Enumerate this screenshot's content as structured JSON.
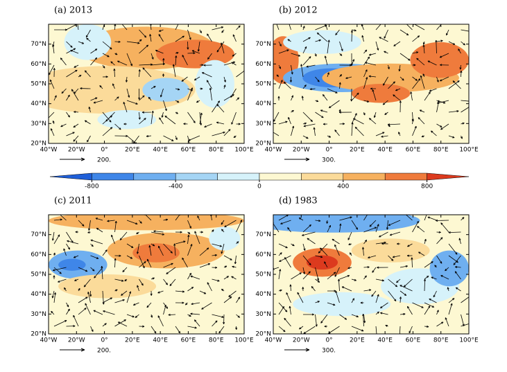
{
  "panels": [
    {
      "title": "(a) 2013",
      "reference_vector": "200."
    },
    {
      "title": "(b) 2012",
      "reference_vector": "300."
    },
    {
      "title": "(c) 2011",
      "reference_vector": "200."
    },
    {
      "title": "(d) 1983",
      "reference_vector": "300."
    }
  ],
  "lat_lim": [
    20,
    80
  ],
  "lat_ticks": [
    {
      "value": 20,
      "label": "20°N"
    },
    {
      "value": 30,
      "label": "30°N"
    },
    {
      "value": 40,
      "label": "40°N"
    },
    {
      "value": 50,
      "label": "50°N"
    },
    {
      "value": 60,
      "label": "60°N"
    },
    {
      "value": 70,
      "label": "70°N"
    }
  ],
  "lon_lim": [
    -40,
    100
  ],
  "lon_ticks": [
    {
      "value": -40,
      "label": "40°W"
    },
    {
      "value": -20,
      "label": "20°W"
    },
    {
      "value": 0,
      "label": "0°"
    },
    {
      "value": 20,
      "label": "20°E"
    },
    {
      "value": 40,
      "label": "40°E"
    },
    {
      "value": 60,
      "label": "60°E"
    },
    {
      "value": 80,
      "label": "80°E"
    },
    {
      "value": 100,
      "label": "100°E"
    }
  ],
  "colorbar": {
    "lim": [
      -1000,
      1000
    ],
    "ticks": [
      -800,
      -400,
      0,
      400,
      800
    ],
    "levels": [
      -800,
      -600,
      -400,
      -200,
      0,
      200,
      400,
      600,
      800
    ],
    "colors": [
      "#1f5fd8",
      "#3f86e8",
      "#6faff0",
      "#a5d5f5",
      "#d6f2fa",
      "#fdf8d2",
      "#fbdb9a",
      "#f6b15f",
      "#ef7b3c",
      "#dc3a1e"
    ]
  }
}
